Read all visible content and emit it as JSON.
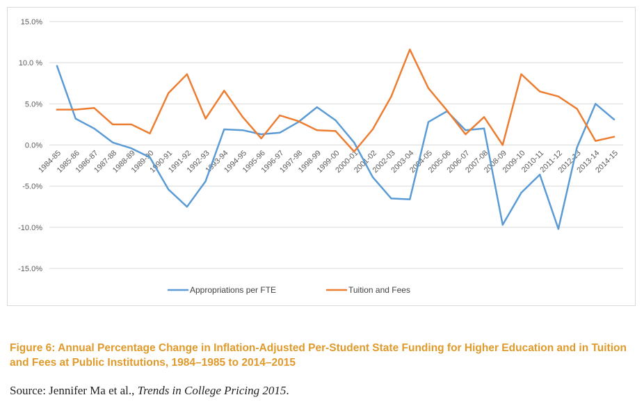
{
  "chart_data": {
    "type": "line",
    "title": "",
    "xlabel": "",
    "ylabel": "",
    "ylim": [
      -15,
      15
    ],
    "y_ticks": [
      "15.0%",
      "10.0 %",
      "5.0%",
      "0.0%",
      "-5.0%",
      "-10.0%",
      "-15.0%"
    ],
    "grid": true,
    "legend_position": "bottom",
    "categories": [
      "1984-85",
      "1985-86",
      "1986-87",
      "1987-88",
      "1988-89",
      "1989-90",
      "1990-91",
      "1991-92",
      "1992-93",
      "1993-94",
      "1994-95",
      "1995-96",
      "1996-97",
      "1997-98",
      "1998-99",
      "1999-00",
      "2000-01",
      "2001-02",
      "2002-03",
      "2003-04",
      "2004-05",
      "2005-06",
      "2006-07",
      "2007-08",
      "2008-09",
      "2009-10",
      "2010-11",
      "2011-12",
      "2012-13",
      "2013-14",
      "2014-15"
    ],
    "series": [
      {
        "name": "Appropriations per FTE",
        "color": "#5b9bd5",
        "values": [
          9.6,
          3.2,
          2.0,
          0.3,
          -0.4,
          -1.5,
          -5.4,
          -7.5,
          -4.4,
          1.9,
          1.8,
          1.3,
          1.5,
          2.8,
          4.6,
          3.0,
          0.3,
          -3.9,
          -6.5,
          -6.6,
          2.8,
          4.1,
          1.8,
          2.0,
          -9.7,
          -5.8,
          -3.6,
          -10.2,
          -0.3,
          5.0,
          3.1
        ]
      },
      {
        "name": "Tuition and Fees",
        "color": "#ed7d31",
        "values": [
          4.3,
          4.3,
          4.5,
          2.5,
          2.5,
          1.4,
          6.3,
          8.6,
          3.2,
          6.6,
          3.4,
          0.8,
          3.6,
          2.9,
          1.8,
          1.7,
          -0.8,
          1.9,
          5.9,
          11.6,
          6.9,
          4.2,
          1.3,
          3.4,
          0.0,
          8.6,
          6.5,
          5.9,
          4.4,
          0.5,
          1.0
        ]
      }
    ]
  },
  "caption": {
    "text": "Figure 6: Annual Percentage Change in Inflation-Adjusted Per-Student State Funding for Higher Education and in Tuition and Fees at Public Institutions, 1984–1985 to 2014–2015"
  },
  "source": {
    "prefix": "Source: Jennifer Ma et al., ",
    "title": "Trends in College Pricing 2015",
    "suffix": "."
  }
}
